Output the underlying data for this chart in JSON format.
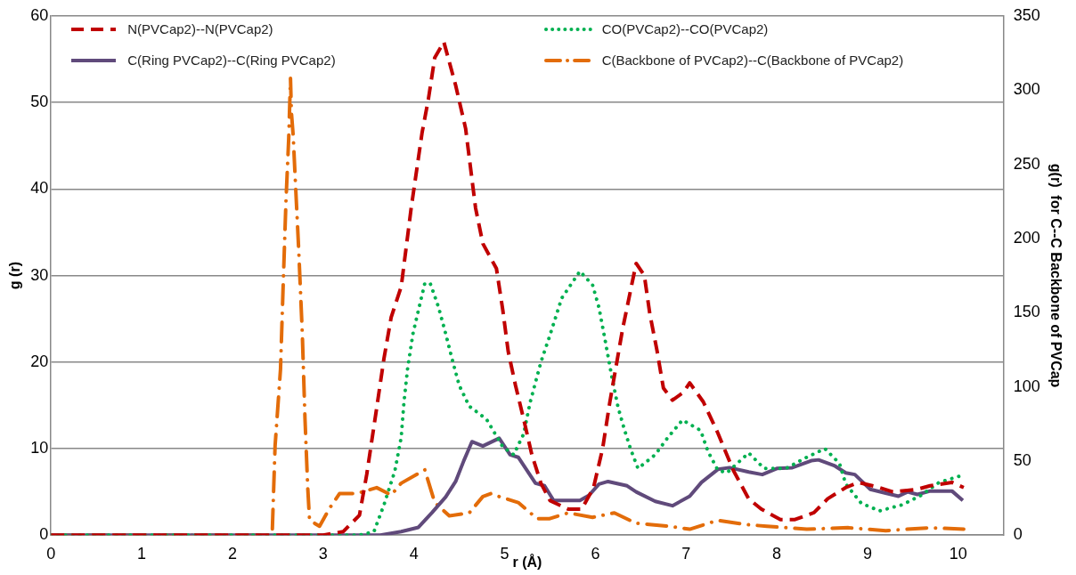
{
  "chart_data": {
    "type": "line",
    "xlabel": "r (Å)",
    "ylabel": "g (r)",
    "y2label": "g(r)  for C--C Backbone of PVCap",
    "xlim": [
      0,
      10.5
    ],
    "xticks": [
      0,
      1,
      2,
      3,
      4,
      5,
      6,
      7,
      8,
      9,
      10
    ],
    "ylim": [
      0,
      60
    ],
    "yticks": [
      0,
      10,
      20,
      30,
      40,
      50,
      60
    ],
    "y2lim": [
      0,
      350
    ],
    "y2ticks": [
      0,
      50,
      100,
      150,
      200,
      250,
      300,
      350
    ],
    "grid": "y",
    "legend": "top",
    "marker": "none",
    "series": [
      {
        "name": "N(PVCap2)--N(PVCap2)",
        "color": "#c00000",
        "line_style": "dashed",
        "x": [
          0,
          3.0,
          3.22,
          3.4,
          3.48,
          3.58,
          3.67,
          3.75,
          3.86,
          3.97,
          4.09,
          4.16,
          4.23,
          4.33,
          4.46,
          4.57,
          4.68,
          4.76,
          4.91,
          4.98,
          5.04,
          5.12,
          5.21,
          5.3,
          5.4,
          5.5,
          5.7,
          5.85,
          5.98,
          6.08,
          6.16,
          6.3,
          6.4,
          6.45,
          6.54,
          6.6,
          6.68,
          6.75,
          6.85,
          6.97,
          7.04,
          7.19,
          7.35,
          7.52,
          7.69,
          7.83,
          8.04,
          8.2,
          8.41,
          8.56,
          8.76,
          8.9,
          9.13,
          9.28,
          9.55,
          9.69,
          9.93,
          10.06
        ],
        "values": [
          0,
          0,
          0.4,
          2.3,
          7,
          14,
          20.4,
          25.2,
          28.7,
          37.8,
          46.5,
          50.4,
          55.2,
          57,
          52,
          47,
          37.8,
          33.7,
          30.8,
          26,
          21.2,
          17.3,
          13.4,
          9.3,
          6,
          4,
          3,
          3,
          5.5,
          10,
          15.4,
          23.8,
          28.9,
          31.4,
          30,
          25.6,
          21.3,
          17,
          15.6,
          16.5,
          17.6,
          15.4,
          11.8,
          7.5,
          4.2,
          3,
          1.8,
          1.8,
          2.6,
          4.2,
          5.5,
          6.1,
          5.5,
          5,
          5.3,
          5.7,
          6.1,
          5.5
        ]
      },
      {
        "name": "CO(PVCap2)--CO(PVCap2)",
        "color": "#00b050",
        "line_style": "dotted",
        "x": [
          0,
          3.4,
          3.56,
          3.67,
          3.79,
          3.86,
          3.89,
          3.93,
          3.99,
          4.05,
          4.12,
          4.18,
          4.27,
          4.35,
          4.42,
          4.5,
          4.61,
          4.8,
          4.98,
          5.1,
          5.21,
          5.28,
          5.4,
          5.49,
          5.63,
          5.83,
          5.97,
          6.04,
          6.11,
          6.18,
          6.25,
          6.32,
          6.39,
          6.47,
          6.66,
          6.8,
          6.96,
          7.16,
          7.24,
          7.35,
          7.45,
          7.69,
          7.86,
          8.1,
          8.31,
          8.53,
          8.69,
          8.76,
          8.93,
          9.13,
          9.38,
          9.59,
          9.79,
          10.01
        ],
        "values": [
          0,
          0,
          0.4,
          3.5,
          7.4,
          11.3,
          15.3,
          19.2,
          23.3,
          26,
          29.1,
          29.1,
          26.4,
          23.3,
          20.4,
          17.3,
          14.9,
          13.4,
          10.2,
          9.3,
          11.7,
          15.3,
          20,
          22.8,
          27.4,
          30.5,
          28.9,
          26.3,
          22.4,
          18.4,
          14.8,
          12.2,
          9.9,
          7.7,
          9.3,
          11.3,
          13.3,
          12.1,
          9.7,
          7.5,
          7.2,
          9.5,
          7.7,
          7.7,
          8.9,
          10,
          8.3,
          5.9,
          3.7,
          2.8,
          3.5,
          4.6,
          6.1,
          6.8
        ]
      },
      {
        "name": "C(Ring PVCap2)--C(Ring PVCap2)",
        "color": "#604a7b",
        "line_style": "solid",
        "x": [
          0,
          3.63,
          3.86,
          4.05,
          4.2,
          4.35,
          4.46,
          4.55,
          4.64,
          4.76,
          4.94,
          5.06,
          5.15,
          5.34,
          5.44,
          5.54,
          5.83,
          5.93,
          6.04,
          6.14,
          6.35,
          6.45,
          6.66,
          6.85,
          7.04,
          7.17,
          7.35,
          7.48,
          7.69,
          7.84,
          8.0,
          8.17,
          8.38,
          8.46,
          8.64,
          8.76,
          8.86,
          9.03,
          9.34,
          9.44,
          9.55,
          9.69,
          9.93,
          10.05
        ],
        "values": [
          0,
          0,
          0.4,
          0.9,
          2.6,
          4.4,
          6.2,
          8.6,
          10.8,
          10.3,
          11.2,
          9.3,
          9,
          6,
          5.7,
          4,
          4,
          4.6,
          5.9,
          6.2,
          5.7,
          5,
          3.9,
          3.4,
          4.5,
          6.1,
          7.6,
          7.8,
          7.3,
          7,
          7.7,
          7.8,
          8.6,
          8.7,
          8,
          7.2,
          7,
          5.3,
          4.5,
          5,
          4.7,
          5.1,
          5.1,
          4
        ]
      },
      {
        "name": "C(Backbone of PVCap2)--C(Backbone of PVCap2)",
        "color": "#e36c09",
        "line_style": "dashdot",
        "axis": "y2",
        "x": [
          0,
          2.4,
          2.44,
          2.47,
          2.53,
          2.56,
          2.59,
          2.62,
          2.64,
          2.65,
          2.67,
          2.69,
          2.73,
          2.77,
          2.8,
          2.83,
          2.85,
          2.96,
          3.07,
          3.18,
          3.37,
          3.59,
          3.75,
          3.86,
          4.12,
          4.23,
          4.39,
          4.61,
          4.76,
          4.85,
          4.94,
          5.15,
          5.36,
          5.49,
          5.7,
          5.97,
          6.21,
          6.45,
          6.81,
          7.04,
          7.35,
          7.68,
          7.89,
          8.33,
          8.79,
          9.2,
          9.69,
          10.06
        ],
        "values": [
          0,
          0,
          4,
          60,
          112,
          170,
          225,
          267,
          308,
          285,
          269,
          243,
          193,
          136,
          78,
          32,
          10,
          6,
          18,
          28,
          28,
          32,
          27,
          35,
          44,
          22,
          13,
          15,
          26,
          28,
          26,
          22,
          11,
          11,
          15,
          12,
          15,
          8,
          6,
          4,
          10,
          7,
          6,
          4,
          5,
          3,
          5,
          4
        ]
      }
    ]
  }
}
